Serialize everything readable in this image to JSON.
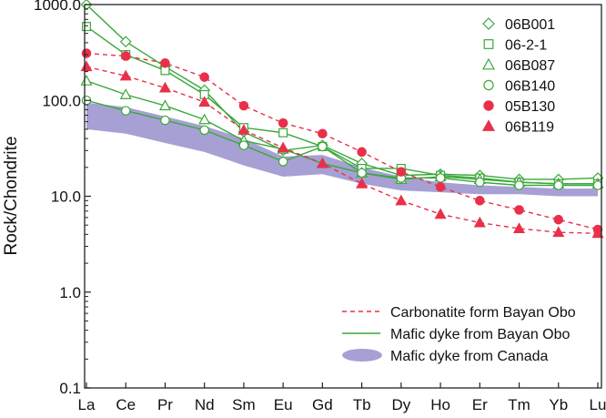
{
  "chart_data": {
    "type": "line",
    "title": "",
    "xlabel": "",
    "ylabel": "Rock/Chondrite",
    "yscale": "log",
    "ylim": [
      0.1,
      1000
    ],
    "y_ticks": [
      "0.1",
      "1.0",
      "10.0",
      "100.0",
      "1000.0"
    ],
    "categories": [
      "La",
      "Ce",
      "Pr",
      "Nd",
      "Sm",
      "Eu",
      "Gd",
      "Tb",
      "Dy",
      "Ho",
      "Er",
      "Tm",
      "Yb",
      "Lu"
    ],
    "grid": false,
    "legend_position": "right",
    "series": [
      {
        "name": "06B001",
        "group": "mafic",
        "marker": "diamond",
        "filled": false,
        "color": "#3aa83a",
        "values": [
          1000,
          410,
          225,
          128,
          47,
          30,
          34,
          22,
          16.5,
          17,
          16.5,
          15,
          15,
          15.5
        ]
      },
      {
        "name": "06-2-1",
        "group": "mafic",
        "marker": "square",
        "filled": false,
        "color": "#3aa83a",
        "values": [
          590,
          300,
          205,
          115,
          52,
          46,
          33,
          19.5,
          19.5,
          16.5,
          15.5,
          14,
          13.5,
          13.5
        ]
      },
      {
        "name": "06B087",
        "group": "mafic",
        "marker": "triangle",
        "filled": false,
        "color": "#3aa83a",
        "values": [
          160,
          115,
          88,
          63,
          38,
          31,
          22,
          17.5,
          15,
          16,
          15,
          14,
          13.5,
          13.5
        ]
      },
      {
        "name": "06B140",
        "group": "mafic",
        "marker": "circle",
        "filled": false,
        "color": "#3aa83a",
        "values": [
          100,
          78,
          62,
          49,
          34,
          23,
          33,
          17.5,
          15.5,
          15.5,
          14,
          13,
          13,
          13
        ]
      },
      {
        "name": "05B130",
        "group": "carbonatite",
        "marker": "circle",
        "filled": true,
        "color": "#e8304a",
        "values": [
          310,
          290,
          245,
          175,
          88,
          58,
          45,
          29,
          18,
          12.5,
          9,
          7.2,
          5.7,
          4.5
        ]
      },
      {
        "name": "06B119",
        "group": "carbonatite",
        "marker": "triangle",
        "filled": true,
        "color": "#e8304a",
        "values": [
          225,
          180,
          135,
          96,
          49,
          32,
          22,
          13.5,
          9,
          6.5,
          5.3,
          4.6,
          4.2,
          4.1
        ]
      }
    ],
    "band": {
      "name": "Mafic dyke from Canada",
      "color": "#a7a0d4",
      "upper": [
        95,
        85,
        68,
        54,
        40,
        26,
        27,
        20,
        16,
        14,
        13,
        12.5,
        12,
        12
      ],
      "lower": [
        50,
        45,
        36,
        29,
        21,
        16,
        17,
        13.5,
        11.5,
        11,
        10.5,
        10.5,
        10,
        10
      ]
    },
    "legend_lines": [
      {
        "label": "Carbonatite form Bayan Obo",
        "style": "dashed",
        "color": "#e8304a"
      },
      {
        "label": "Mafic dyke from Bayan Obo",
        "style": "solid",
        "color": "#3aa83a"
      },
      {
        "label": "Mafic dyke from Canada",
        "style": "band",
        "color": "#a7a0d4"
      }
    ]
  }
}
